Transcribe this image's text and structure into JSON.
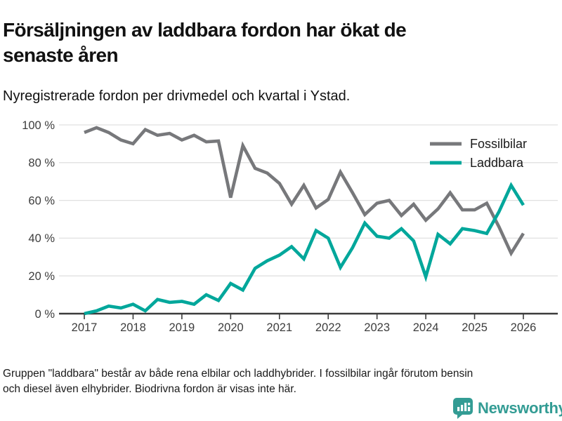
{
  "header": {
    "title_lines": [
      "Försäljningen av laddbara fordon har ökat de",
      "senaste åren"
    ],
    "subtitle": "Nyregistrerade fordon per drivmedel och kvartal i Ystad."
  },
  "chart_data": {
    "type": "line",
    "unit": "%",
    "grid": "horizontal",
    "legend_position": "top-right",
    "ylim": [
      0,
      100
    ],
    "yticks": [
      0,
      20,
      40,
      60,
      80,
      100
    ],
    "ytick_labels": [
      "0 %",
      "20 %",
      "40 %",
      "60 %",
      "80 %",
      "100 %"
    ],
    "x_year_ticks": [
      "2017",
      "2018",
      "2019",
      "2020",
      "2021",
      "2022",
      "2023",
      "2024",
      "2025",
      "2026"
    ],
    "x_quarters": [
      "2017-Q1",
      "2017-Q2",
      "2017-Q3",
      "2017-Q4",
      "2018-Q1",
      "2018-Q2",
      "2018-Q3",
      "2018-Q4",
      "2019-Q1",
      "2019-Q2",
      "2019-Q3",
      "2019-Q4",
      "2020-Q1",
      "2020-Q2",
      "2020-Q3",
      "2020-Q4",
      "2021-Q1",
      "2021-Q2",
      "2021-Q3",
      "2021-Q4",
      "2022-Q1",
      "2022-Q2",
      "2022-Q3",
      "2022-Q4",
      "2023-Q1",
      "2023-Q2",
      "2023-Q3",
      "2023-Q4",
      "2024-Q1",
      "2024-Q2",
      "2024-Q3",
      "2024-Q4",
      "2025-Q1",
      "2025-Q2",
      "2025-Q3",
      "2025-Q4",
      "2026-Q1"
    ],
    "series": [
      {
        "name": "Fossilbilar",
        "color": "#77787B",
        "values": [
          96,
          98.5,
          96,
          92,
          90,
          97.5,
          94.5,
          95.5,
          92,
          94.5,
          91,
          91.5,
          61.5,
          89,
          77,
          74.5,
          69,
          58,
          68,
          56,
          60.5,
          75,
          64,
          52.5,
          58.5,
          60,
          52,
          58,
          49.5,
          55.5,
          64,
          55,
          55,
          58.5,
          46,
          32,
          42.5
        ]
      },
      {
        "name": "Laddbara",
        "color": "#00A79B",
        "values": [
          0,
          1.5,
          4,
          3,
          5,
          1.5,
          7.5,
          6,
          6.5,
          5,
          10,
          7,
          16,
          12.5,
          24,
          28,
          31,
          35.5,
          29,
          44,
          40,
          24.5,
          35,
          48,
          41,
          40,
          45,
          38.5,
          19.5,
          42,
          37,
          45,
          44,
          42.5,
          54,
          68,
          57.5
        ]
      }
    ],
    "axis_color": "#3B3B3B",
    "gridline_color": "#E0E0E0"
  },
  "footer": {
    "note_lines": [
      "Gruppen \"laddbara\" består av både rena elbilar och laddhybrider. I fossilbilar ingår förutom bensin",
      "och diesel även elhybrider. Biodrivna fordon är visas inte här."
    ]
  },
  "branding": {
    "logo_text": "Newsworthy",
    "logo_color": "#339C94"
  }
}
